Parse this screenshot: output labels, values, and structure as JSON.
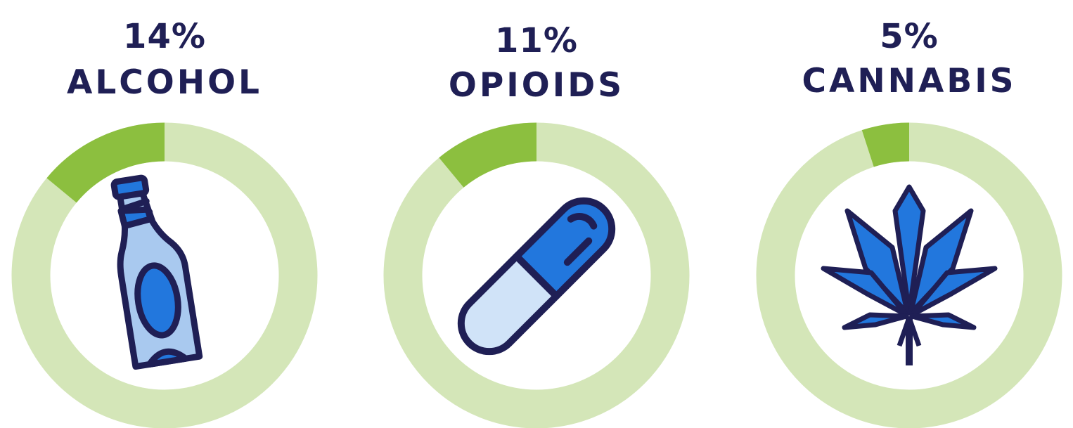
{
  "colors": {
    "text": "#1f1f55",
    "ring_track": "#d4e6b8",
    "ring_fill": "#8cbf3f",
    "icon_outline": "#1f1f55",
    "icon_primary": "#2277dd",
    "icon_light": "#a9c9ef",
    "icon_pale": "#d0e3f8"
  },
  "chart_data": [
    {
      "type": "pie",
      "value": 14,
      "value_label": "14%",
      "category": "ALCOHOL",
      "icon": "bottle-icon"
    },
    {
      "type": "pie",
      "value": 11,
      "value_label": "11%",
      "category": "OPIOIDS",
      "icon": "pill-icon"
    },
    {
      "type": "pie",
      "value": 5,
      "value_label": "5%",
      "category": "CANNABIS",
      "icon": "cannabis-leaf-icon"
    }
  ]
}
